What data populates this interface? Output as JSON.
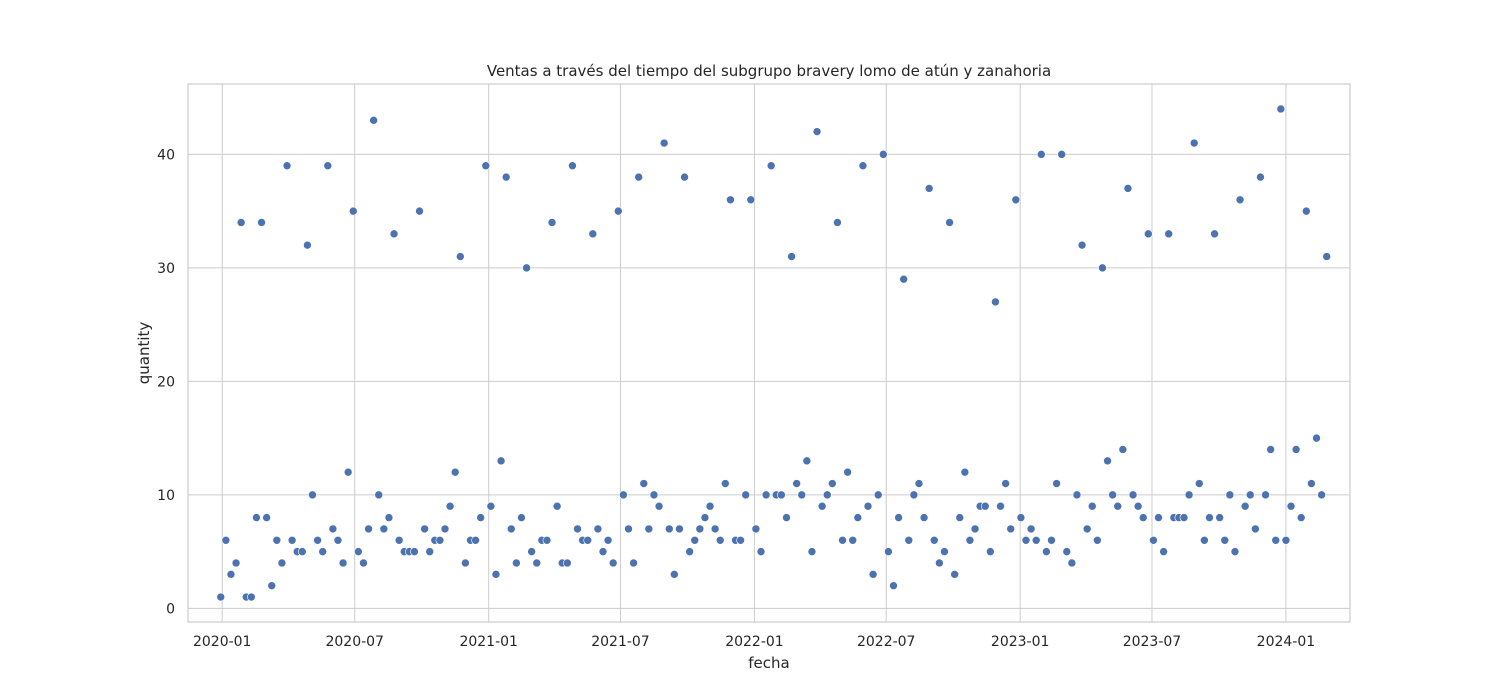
{
  "chart_data": {
    "type": "scatter",
    "title": "Ventas a través del tiempo del subgrupo bravery lomo de atún y zanahoria",
    "xlabel": "fecha",
    "ylabel": "quantity",
    "xlim": [
      "2019-11-15",
      "2024-03-29"
    ],
    "ylim": [
      -1.2,
      46.2
    ],
    "x_ticks": [
      "2020-01",
      "2020-07",
      "2021-01",
      "2021-07",
      "2022-01",
      "2022-07",
      "2023-01",
      "2023-07",
      "2024-01"
    ],
    "y_ticks": [
      0,
      10,
      20,
      30,
      40
    ],
    "grid": true,
    "color": "#4c72b0",
    "points": [
      [
        "2019-12-30",
        1
      ],
      [
        "2020-01-06",
        6
      ],
      [
        "2020-01-13",
        3
      ],
      [
        "2020-01-20",
        4
      ],
      [
        "2020-01-27",
        34
      ],
      [
        "2020-02-03",
        1
      ],
      [
        "2020-02-10",
        1
      ],
      [
        "2020-02-17",
        8
      ],
      [
        "2020-02-24",
        34
      ],
      [
        "2020-03-02",
        8
      ],
      [
        "2020-03-09",
        2
      ],
      [
        "2020-03-16",
        6
      ],
      [
        "2020-03-23",
        4
      ],
      [
        "2020-03-30",
        39
      ],
      [
        "2020-04-06",
        6
      ],
      [
        "2020-04-13",
        5
      ],
      [
        "2020-04-20",
        5
      ],
      [
        "2020-04-27",
        32
      ],
      [
        "2020-05-04",
        10
      ],
      [
        "2020-05-11",
        6
      ],
      [
        "2020-05-18",
        5
      ],
      [
        "2020-05-25",
        39
      ],
      [
        "2020-06-01",
        7
      ],
      [
        "2020-06-08",
        6
      ],
      [
        "2020-06-15",
        4
      ],
      [
        "2020-06-22",
        12
      ],
      [
        "2020-06-29",
        35
      ],
      [
        "2020-07-06",
        5
      ],
      [
        "2020-07-13",
        4
      ],
      [
        "2020-07-20",
        7
      ],
      [
        "2020-07-27",
        43
      ],
      [
        "2020-08-03",
        10
      ],
      [
        "2020-08-10",
        7
      ],
      [
        "2020-08-17",
        8
      ],
      [
        "2020-08-24",
        33
      ],
      [
        "2020-08-31",
        6
      ],
      [
        "2020-09-07",
        5
      ],
      [
        "2020-09-14",
        5
      ],
      [
        "2020-09-21",
        5
      ],
      [
        "2020-09-28",
        35
      ],
      [
        "2020-10-05",
        7
      ],
      [
        "2020-10-12",
        5
      ],
      [
        "2020-10-19",
        6
      ],
      [
        "2020-10-26",
        6
      ],
      [
        "2020-11-02",
        7
      ],
      [
        "2020-11-09",
        9
      ],
      [
        "2020-11-16",
        12
      ],
      [
        "2020-11-23",
        31
      ],
      [
        "2020-11-30",
        4
      ],
      [
        "2020-12-07",
        6
      ],
      [
        "2020-12-14",
        6
      ],
      [
        "2020-12-21",
        8
      ],
      [
        "2020-12-28",
        39
      ],
      [
        "2021-01-04",
        9
      ],
      [
        "2021-01-11",
        3
      ],
      [
        "2021-01-18",
        13
      ],
      [
        "2021-01-25",
        38
      ],
      [
        "2021-02-01",
        7
      ],
      [
        "2021-02-08",
        4
      ],
      [
        "2021-02-15",
        8
      ],
      [
        "2021-02-22",
        30
      ],
      [
        "2021-03-01",
        5
      ],
      [
        "2021-03-08",
        4
      ],
      [
        "2021-03-15",
        6
      ],
      [
        "2021-03-22",
        6
      ],
      [
        "2021-03-29",
        34
      ],
      [
        "2021-04-05",
        9
      ],
      [
        "2021-04-12",
        4
      ],
      [
        "2021-04-19",
        4
      ],
      [
        "2021-04-26",
        39
      ],
      [
        "2021-05-03",
        7
      ],
      [
        "2021-05-10",
        6
      ],
      [
        "2021-05-17",
        6
      ],
      [
        "2021-05-24",
        33
      ],
      [
        "2021-05-31",
        7
      ],
      [
        "2021-06-07",
        5
      ],
      [
        "2021-06-14",
        6
      ],
      [
        "2021-06-21",
        4
      ],
      [
        "2021-06-28",
        35
      ],
      [
        "2021-07-05",
        10
      ],
      [
        "2021-07-12",
        7
      ],
      [
        "2021-07-19",
        4
      ],
      [
        "2021-07-26",
        38
      ],
      [
        "2021-08-02",
        11
      ],
      [
        "2021-08-09",
        7
      ],
      [
        "2021-08-16",
        10
      ],
      [
        "2021-08-23",
        9
      ],
      [
        "2021-08-30",
        41
      ],
      [
        "2021-09-06",
        7
      ],
      [
        "2021-09-13",
        3
      ],
      [
        "2021-09-20",
        7
      ],
      [
        "2021-09-27",
        38
      ],
      [
        "2021-10-04",
        5
      ],
      [
        "2021-10-11",
        6
      ],
      [
        "2021-10-18",
        7
      ],
      [
        "2021-10-25",
        8
      ],
      [
        "2021-11-01",
        9
      ],
      [
        "2021-11-08",
        7
      ],
      [
        "2021-11-15",
        6
      ],
      [
        "2021-11-22",
        11
      ],
      [
        "2021-11-29",
        36
      ],
      [
        "2021-12-06",
        6
      ],
      [
        "2021-12-13",
        6
      ],
      [
        "2021-12-20",
        10
      ],
      [
        "2021-12-27",
        36
      ],
      [
        "2022-01-03",
        7
      ],
      [
        "2022-01-10",
        5
      ],
      [
        "2022-01-17",
        10
      ],
      [
        "2022-01-24",
        39
      ],
      [
        "2022-01-31",
        10
      ],
      [
        "2022-02-07",
        10
      ],
      [
        "2022-02-14",
        8
      ],
      [
        "2022-02-21",
        31
      ],
      [
        "2022-02-28",
        11
      ],
      [
        "2022-03-07",
        10
      ],
      [
        "2022-03-14",
        13
      ],
      [
        "2022-03-21",
        5
      ],
      [
        "2022-03-28",
        42
      ],
      [
        "2022-04-04",
        9
      ],
      [
        "2022-04-11",
        10
      ],
      [
        "2022-04-18",
        11
      ],
      [
        "2022-04-25",
        34
      ],
      [
        "2022-05-02",
        6
      ],
      [
        "2022-05-09",
        12
      ],
      [
        "2022-05-16",
        6
      ],
      [
        "2022-05-23",
        8
      ],
      [
        "2022-05-30",
        39
      ],
      [
        "2022-06-06",
        9
      ],
      [
        "2022-06-13",
        3
      ],
      [
        "2022-06-20",
        10
      ],
      [
        "2022-06-27",
        40
      ],
      [
        "2022-07-04",
        5
      ],
      [
        "2022-07-11",
        2
      ],
      [
        "2022-07-18",
        8
      ],
      [
        "2022-07-25",
        29
      ],
      [
        "2022-08-01",
        6
      ],
      [
        "2022-08-08",
        10
      ],
      [
        "2022-08-15",
        11
      ],
      [
        "2022-08-22",
        8
      ],
      [
        "2022-08-29",
        37
      ],
      [
        "2022-09-05",
        6
      ],
      [
        "2022-09-12",
        4
      ],
      [
        "2022-09-19",
        5
      ],
      [
        "2022-09-26",
        34
      ],
      [
        "2022-10-03",
        3
      ],
      [
        "2022-10-10",
        8
      ],
      [
        "2022-10-17",
        12
      ],
      [
        "2022-10-24",
        6
      ],
      [
        "2022-10-31",
        7
      ],
      [
        "2022-11-07",
        9
      ],
      [
        "2022-11-14",
        9
      ],
      [
        "2022-11-21",
        5
      ],
      [
        "2022-11-28",
        27
      ],
      [
        "2022-12-05",
        9
      ],
      [
        "2022-12-12",
        11
      ],
      [
        "2022-12-19",
        7
      ],
      [
        "2022-12-26",
        36
      ],
      [
        "2023-01-02",
        8
      ],
      [
        "2023-01-09",
        6
      ],
      [
        "2023-01-16",
        7
      ],
      [
        "2023-01-23",
        6
      ],
      [
        "2023-01-30",
        40
      ],
      [
        "2023-02-06",
        5
      ],
      [
        "2023-02-13",
        6
      ],
      [
        "2023-02-20",
        11
      ],
      [
        "2023-02-27",
        40
      ],
      [
        "2023-03-06",
        5
      ],
      [
        "2023-03-13",
        4
      ],
      [
        "2023-03-20",
        10
      ],
      [
        "2023-03-27",
        32
      ],
      [
        "2023-04-03",
        7
      ],
      [
        "2023-04-10",
        9
      ],
      [
        "2023-04-17",
        6
      ],
      [
        "2023-04-24",
        30
      ],
      [
        "2023-05-01",
        13
      ],
      [
        "2023-05-08",
        10
      ],
      [
        "2023-05-15",
        9
      ],
      [
        "2023-05-22",
        14
      ],
      [
        "2023-05-29",
        37
      ],
      [
        "2023-06-05",
        10
      ],
      [
        "2023-06-12",
        9
      ],
      [
        "2023-06-19",
        8
      ],
      [
        "2023-06-26",
        33
      ],
      [
        "2023-07-03",
        6
      ],
      [
        "2023-07-10",
        8
      ],
      [
        "2023-07-17",
        5
      ],
      [
        "2023-07-24",
        33
      ],
      [
        "2023-07-31",
        8
      ],
      [
        "2023-08-07",
        8
      ],
      [
        "2023-08-14",
        8
      ],
      [
        "2023-08-21",
        10
      ],
      [
        "2023-08-28",
        41
      ],
      [
        "2023-09-04",
        11
      ],
      [
        "2023-09-11",
        6
      ],
      [
        "2023-09-18",
        8
      ],
      [
        "2023-09-25",
        33
      ],
      [
        "2023-10-02",
        8
      ],
      [
        "2023-10-09",
        6
      ],
      [
        "2023-10-16",
        10
      ],
      [
        "2023-10-23",
        5
      ],
      [
        "2023-10-30",
        36
      ],
      [
        "2023-11-06",
        9
      ],
      [
        "2023-11-13",
        10
      ],
      [
        "2023-11-20",
        7
      ],
      [
        "2023-11-27",
        38
      ],
      [
        "2023-12-04",
        10
      ],
      [
        "2023-12-11",
        14
      ],
      [
        "2023-12-18",
        6
      ],
      [
        "2023-12-25",
        44
      ],
      [
        "2024-01-01",
        6
      ],
      [
        "2024-01-08",
        9
      ],
      [
        "2024-01-15",
        14
      ],
      [
        "2024-01-22",
        8
      ],
      [
        "2024-01-29",
        35
      ],
      [
        "2024-02-05",
        11
      ],
      [
        "2024-02-12",
        15
      ],
      [
        "2024-02-19",
        10
      ],
      [
        "2024-02-26",
        31
      ]
    ]
  }
}
